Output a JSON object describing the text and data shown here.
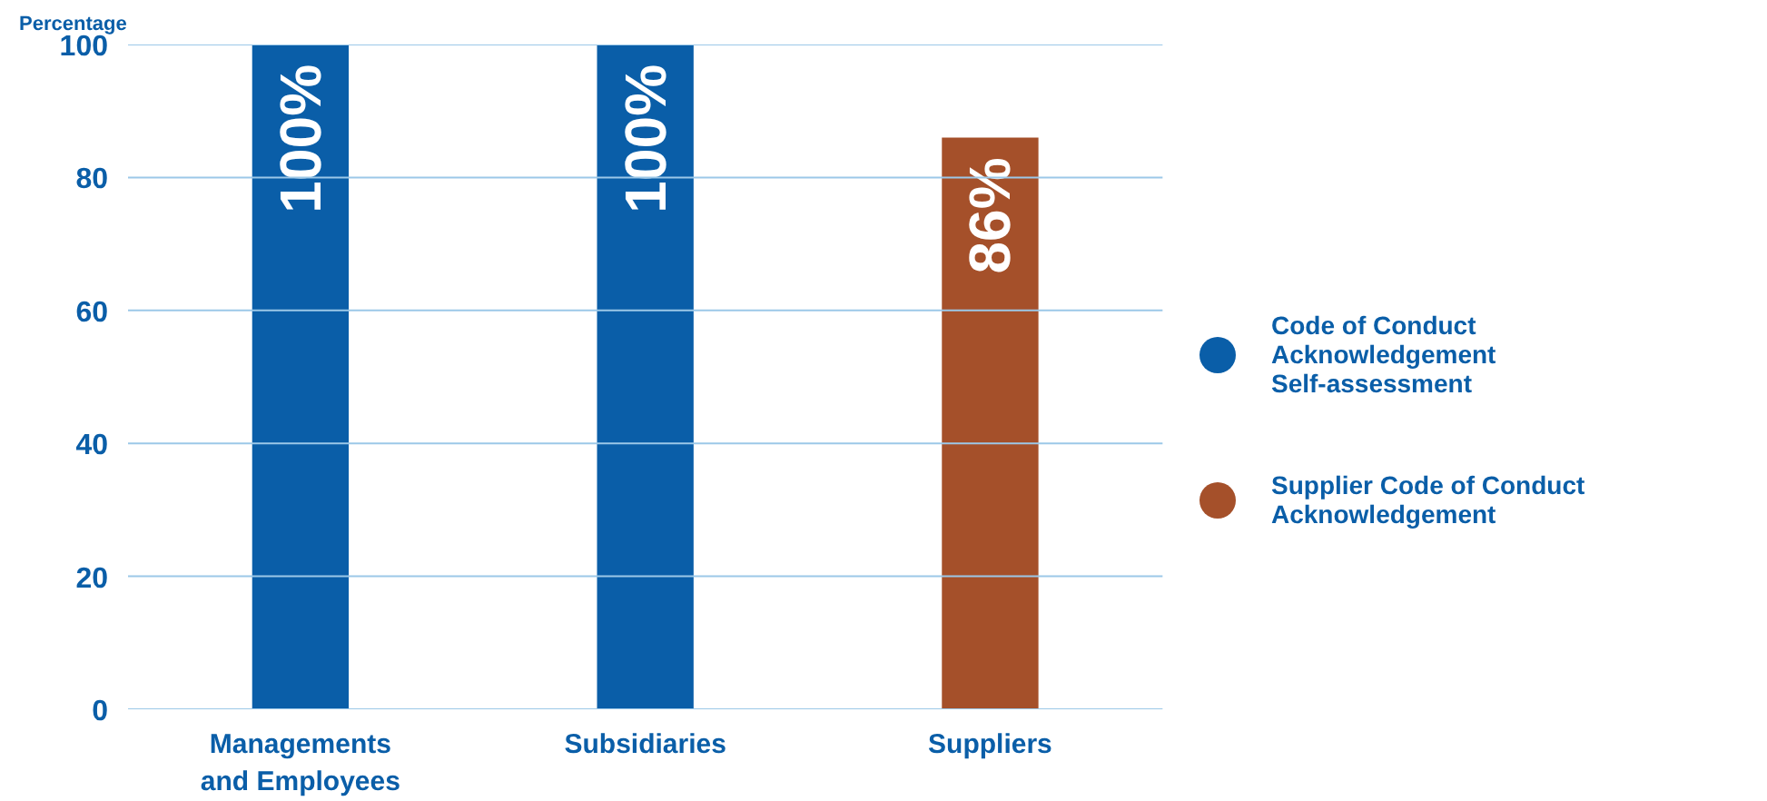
{
  "chart_data": {
    "type": "bar",
    "ylabel": "Percentage",
    "categories": [
      "Managements and Employees",
      "Subsidiaries",
      "Suppliers"
    ],
    "series": [
      {
        "name": "Code of Conduct\nAcknowledgement\nSelf-assessment",
        "color": "#0a5ea8",
        "values": [
          100,
          100,
          null
        ]
      },
      {
        "name": "Supplier Code of Conduct\nAcknowledgement",
        "color": "#a5502a",
        "values": [
          null,
          null,
          86
        ]
      }
    ],
    "value_labels": [
      "100%",
      "100%",
      "86%"
    ],
    "ylim": [
      0,
      100
    ],
    "yticks": [
      0,
      20,
      40,
      60,
      80,
      100
    ],
    "grid": "y",
    "legend": "right"
  }
}
